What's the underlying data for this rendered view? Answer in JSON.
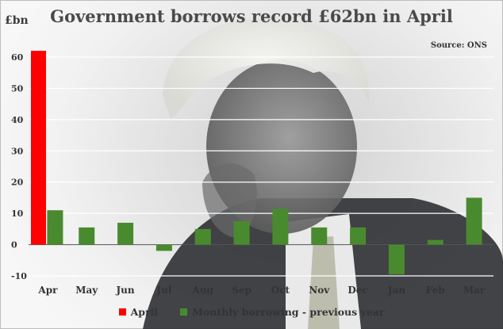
{
  "chart_data": {
    "type": "bar",
    "title": "Government borrows record £62bn in April",
    "ylabel": "£bn",
    "source": "Source: ONS",
    "categories": [
      "Apr",
      "May",
      "Jun",
      "Jul",
      "Aug",
      "Sep",
      "Oct",
      "Nov",
      "Dec",
      "Jan",
      "Feb",
      "Mar"
    ],
    "series": [
      {
        "name": "April",
        "color": "#ff0000",
        "values": [
          62,
          null,
          null,
          null,
          null,
          null,
          null,
          null,
          null,
          null,
          null,
          null
        ]
      },
      {
        "name": "Monthly borrowing - previous year",
        "color": "#4a8a2f",
        "values": [
          11,
          5.5,
          7,
          -2,
          5,
          7.5,
          11.5,
          5.5,
          5.5,
          -9.5,
          1.5,
          15
        ]
      }
    ],
    "ylim": [
      -10,
      60
    ],
    "yticks": [
      -10,
      0,
      10,
      20,
      30,
      40,
      50,
      60
    ],
    "grid": true,
    "legend_position": "bottom"
  }
}
